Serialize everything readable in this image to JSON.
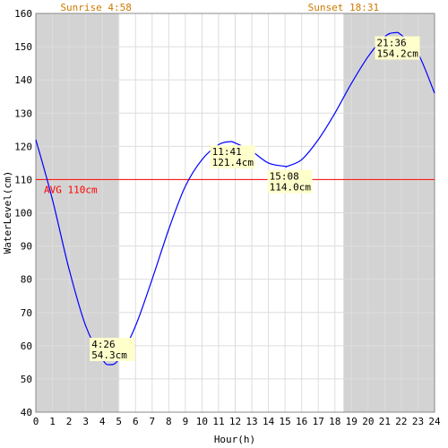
{
  "chart_data": {
    "type": "line",
    "xlabel": "Hour(h)",
    "ylabel": "WaterLevel(cm)",
    "xlim": [
      0,
      24
    ],
    "ylim": [
      40,
      160
    ],
    "x_ticks": [
      0,
      1,
      2,
      3,
      4,
      5,
      6,
      7,
      8,
      9,
      10,
      11,
      12,
      13,
      14,
      15,
      16,
      17,
      18,
      19,
      20,
      21,
      22,
      23,
      24
    ],
    "y_ticks": [
      40,
      50,
      60,
      70,
      80,
      90,
      100,
      110,
      120,
      130,
      140,
      150,
      160
    ],
    "grid": true,
    "sunrise": {
      "label": "Sunrise 4:58",
      "hour": 4.967
    },
    "sunset": {
      "label": "Sunset 18:31",
      "hour": 18.517
    },
    "average": {
      "label": "AVG 110cm",
      "value": 110
    },
    "extrema": [
      {
        "time": "4:26",
        "level": "54.3cm",
        "hour": 4.433,
        "value": 54.3
      },
      {
        "time": "11:41",
        "level": "121.4cm",
        "hour": 11.683,
        "value": 121.4
      },
      {
        "time": "15:08",
        "level": "114.0cm",
        "hour": 15.133,
        "value": 114.0
      },
      {
        "time": "21:36",
        "level": "154.2cm",
        "hour": 21.6,
        "value": 154.2
      }
    ],
    "series": [
      {
        "x": [
          0,
          1,
          2,
          3,
          4,
          4.433,
          5,
          6,
          7,
          8,
          9,
          10,
          11,
          11.683,
          12,
          13,
          14,
          15,
          15.133,
          16,
          17,
          18,
          19,
          20,
          21,
          21.6,
          22,
          23,
          24
        ],
        "values": [
          122,
          104,
          83,
          66,
          56,
          54.3,
          56,
          66,
          80,
          95,
          108,
          116,
          120.5,
          121.4,
          121,
          118.5,
          115,
          114,
          114.0,
          116,
          122,
          130,
          139,
          147,
          153,
          154.2,
          153.5,
          148,
          136
        ]
      }
    ],
    "colors": {
      "line": "#0000ff",
      "average": "#ff0000",
      "night": "#d3d3d3",
      "grid": "#dddddd",
      "label_bg": "#ffffcc",
      "sun_text": "#cc7a00"
    }
  }
}
